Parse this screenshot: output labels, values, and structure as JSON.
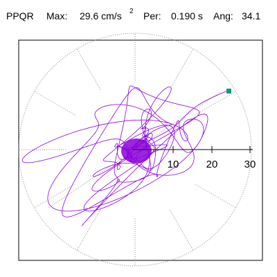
{
  "header": {
    "station": "PPQR",
    "max_label": "Max:",
    "max_value": "29.6 cm/s",
    "max_exponent": "2",
    "per_label": "Per:",
    "per_value": "0.190 s",
    "ang_label": "Ang:",
    "ang_value": "34.1"
  },
  "plot": {
    "radial_ticks": [
      "10",
      "20",
      "30"
    ],
    "colors": {
      "trace": "#8b00d9",
      "marker": "#0f9a80",
      "grid": "#888888",
      "frame": "#000000"
    }
  }
}
